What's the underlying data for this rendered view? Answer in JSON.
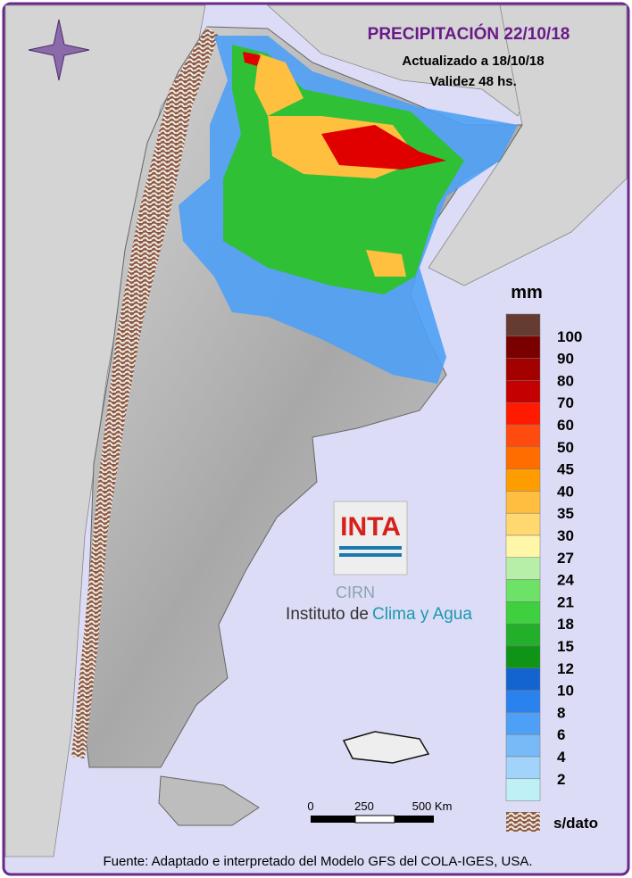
{
  "header": {
    "title": "PRECIPITACIÓN 22/10/18",
    "updated": "Actualizado a 18/10/18",
    "validity": "Validez 48 hs."
  },
  "legend": {
    "unit": "mm",
    "labels": [
      100,
      90,
      80,
      70,
      60,
      50,
      45,
      40,
      35,
      30,
      27,
      24,
      21,
      18,
      15,
      12,
      10,
      8,
      6,
      4,
      2
    ],
    "colors": [
      "#663c32",
      "#7a0000",
      "#a30000",
      "#c40000",
      "#ff1a00",
      "#ff4a10",
      "#ff6c00",
      "#ff9c00",
      "#ffbe40",
      "#ffd970",
      "#fff6a8",
      "#b6f0a8",
      "#6ee266",
      "#3fd040",
      "#22b02a",
      "#0f9418",
      "#1464d0",
      "#2a82ee",
      "#4ea0f6",
      "#78baf8",
      "#a2d4fb",
      "#bff0f6"
    ],
    "no_data": "s/dato"
  },
  "scale_bar": {
    "labels": [
      "0",
      "250",
      "500 Km"
    ]
  },
  "logo": {
    "brand": "INTA",
    "center": "CIRN",
    "institute": "Instituto de",
    "institute_highlight": "Clima y Agua"
  },
  "footer": {
    "source": "Fuente: Adaptado e interpretado del Modelo GFS del COLA-IGES, USA."
  }
}
